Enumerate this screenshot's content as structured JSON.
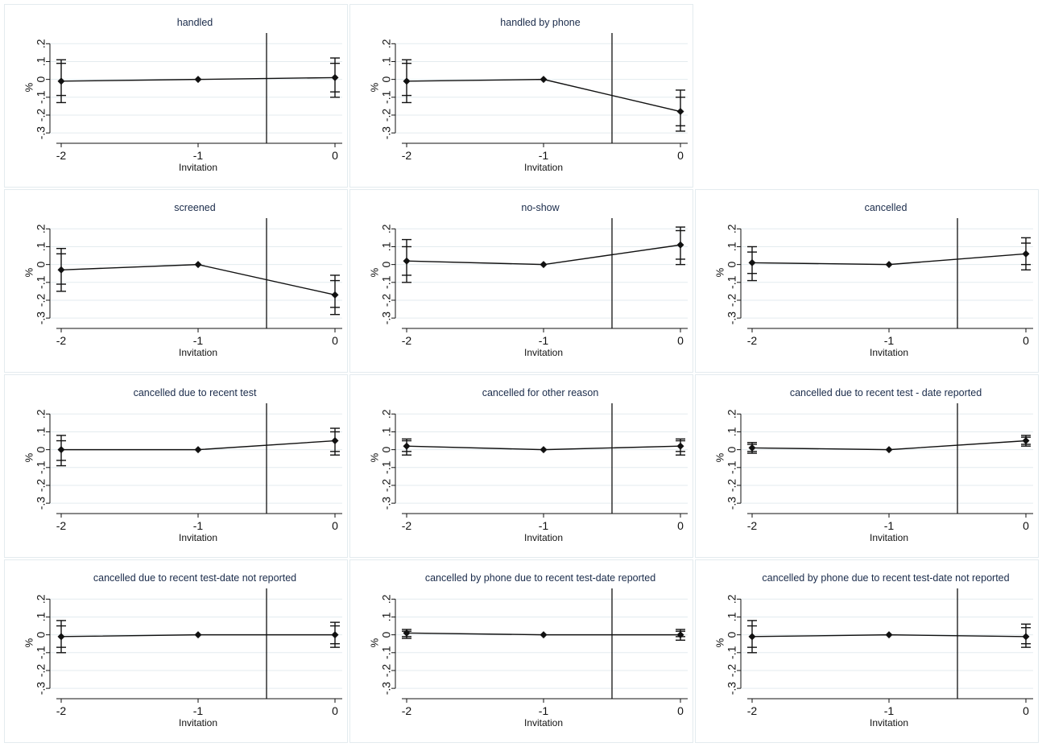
{
  "chart_data": [
    {
      "type": "line",
      "title": "handled",
      "xlabel": "Invitation",
      "ylabel": "%",
      "x": [
        -2,
        -1,
        0
      ],
      "x_tick_labels": [
        "-2",
        "-1",
        "0"
      ],
      "y_ticks": [
        -0.3,
        -0.2,
        -0.1,
        0,
        0.1,
        0.2
      ],
      "y_tick_labels": [
        "-.3",
        "-.2",
        "-.1",
        "0",
        ".1",
        ".2"
      ],
      "ylim": [
        -0.34,
        0.26
      ],
      "values": [
        -0.01,
        0.0,
        0.01
      ],
      "ci_inner": [
        [
          -0.09,
          0.09
        ],
        [
          0.0,
          0.0
        ],
        [
          -0.07,
          0.09
        ]
      ],
      "ci_outer": [
        [
          -0.13,
          0.11
        ],
        [
          0.0,
          0.0
        ],
        [
          -0.1,
          0.12
        ]
      ],
      "reference_line_x": -0.5
    },
    {
      "type": "line",
      "title": "handled by phone",
      "xlabel": "Invitation",
      "ylabel": "%",
      "x": [
        -2,
        -1,
        0
      ],
      "x_tick_labels": [
        "-2",
        "-1",
        "0"
      ],
      "y_ticks": [
        -0.3,
        -0.2,
        -0.1,
        0,
        0.1,
        0.2
      ],
      "y_tick_labels": [
        "-.3",
        "-.2",
        "-.1",
        "0",
        ".1",
        ".2"
      ],
      "ylim": [
        -0.34,
        0.26
      ],
      "values": [
        -0.01,
        0.0,
        -0.18
      ],
      "ci_inner": [
        [
          -0.09,
          0.09
        ],
        [
          0.0,
          0.0
        ],
        [
          -0.26,
          -0.1
        ]
      ],
      "ci_outer": [
        [
          -0.13,
          0.11
        ],
        [
          0.0,
          0.0
        ],
        [
          -0.29,
          -0.06
        ]
      ],
      "reference_line_x": -0.5
    },
    null,
    {
      "type": "line",
      "title": "screened",
      "xlabel": "Invitation",
      "ylabel": "%",
      "x": [
        -2,
        -1,
        0
      ],
      "x_tick_labels": [
        "-2",
        "-1",
        "0"
      ],
      "y_ticks": [
        -0.3,
        -0.2,
        -0.1,
        0,
        0.1,
        0.2
      ],
      "y_tick_labels": [
        "-.3",
        "-.2",
        "-.1",
        "0",
        ".1",
        ".2"
      ],
      "ylim": [
        -0.34,
        0.26
      ],
      "values": [
        -0.03,
        0.0,
        -0.17
      ],
      "ci_inner": [
        [
          -0.11,
          0.06
        ],
        [
          0.0,
          0.0
        ],
        [
          -0.24,
          -0.09
        ]
      ],
      "ci_outer": [
        [
          -0.15,
          0.09
        ],
        [
          0.0,
          0.0
        ],
        [
          -0.28,
          -0.06
        ]
      ],
      "reference_line_x": -0.5
    },
    {
      "type": "line",
      "title": "no-show",
      "xlabel": "Invitation",
      "ylabel": "%",
      "x": [
        -2,
        -1,
        0
      ],
      "x_tick_labels": [
        "-2",
        "-1",
        "0"
      ],
      "y_ticks": [
        -0.3,
        -0.2,
        -0.1,
        0,
        0.1,
        0.2
      ],
      "y_tick_labels": [
        "-.3",
        "-.2",
        "-.1",
        "0",
        ".1",
        ".2"
      ],
      "ylim": [
        -0.34,
        0.26
      ],
      "values": [
        0.02,
        0.0,
        0.11
      ],
      "ci_inner": [
        [
          -0.06,
          0.1
        ],
        [
          0.0,
          0.0
        ],
        [
          0.03,
          0.19
        ]
      ],
      "ci_outer": [
        [
          -0.1,
          0.14
        ],
        [
          0.0,
          0.0
        ],
        [
          0.0,
          0.21
        ]
      ],
      "reference_line_x": -0.5
    },
    {
      "type": "line",
      "title": "cancelled",
      "xlabel": "Invitation",
      "ylabel": "%",
      "x": [
        -2,
        -1,
        0
      ],
      "x_tick_labels": [
        "-2",
        "-1",
        "0"
      ],
      "y_ticks": [
        -0.3,
        -0.2,
        -0.1,
        0,
        0.1,
        0.2
      ],
      "y_tick_labels": [
        "-.3",
        "-.2",
        "-.1",
        "0",
        ".1",
        ".2"
      ],
      "ylim": [
        -0.34,
        0.26
      ],
      "values": [
        0.01,
        0.0,
        0.06
      ],
      "ci_inner": [
        [
          -0.05,
          0.07
        ],
        [
          0.0,
          0.0
        ],
        [
          0.0,
          0.12
        ]
      ],
      "ci_outer": [
        [
          -0.09,
          0.1
        ],
        [
          0.0,
          0.0
        ],
        [
          -0.03,
          0.15
        ]
      ],
      "reference_line_x": -0.5
    },
    {
      "type": "line",
      "title": "cancelled due to recent test",
      "xlabel": "Invitation",
      "ylabel": "%",
      "x": [
        -2,
        -1,
        0
      ],
      "x_tick_labels": [
        "-2",
        "-1",
        "0"
      ],
      "y_ticks": [
        -0.3,
        -0.2,
        -0.1,
        0,
        0.1,
        0.2
      ],
      "y_tick_labels": [
        "-.3",
        "-.2",
        "-.1",
        "0",
        ".1",
        ".2"
      ],
      "ylim": [
        -0.34,
        0.26
      ],
      "values": [
        0.0,
        0.0,
        0.05
      ],
      "ci_inner": [
        [
          -0.06,
          0.05
        ],
        [
          0.0,
          0.0
        ],
        [
          -0.01,
          0.1
        ]
      ],
      "ci_outer": [
        [
          -0.09,
          0.08
        ],
        [
          0.0,
          0.0
        ],
        [
          -0.03,
          0.12
        ]
      ],
      "reference_line_x": -0.5
    },
    {
      "type": "line",
      "title": "cancelled for other reason",
      "xlabel": "Invitation",
      "ylabel": "%",
      "x": [
        -2,
        -1,
        0
      ],
      "x_tick_labels": [
        "-2",
        "-1",
        "0"
      ],
      "y_ticks": [
        -0.3,
        -0.2,
        -0.1,
        0,
        0.1,
        0.2
      ],
      "y_tick_labels": [
        "-.3",
        "-.2",
        "-.1",
        "0",
        ".1",
        ".2"
      ],
      "ylim": [
        -0.34,
        0.26
      ],
      "values": [
        0.02,
        0.0,
        0.02
      ],
      "ci_inner": [
        [
          -0.01,
          0.05
        ],
        [
          0.0,
          0.0
        ],
        [
          -0.01,
          0.05
        ]
      ],
      "ci_outer": [
        [
          -0.03,
          0.06
        ],
        [
          0.0,
          0.0
        ],
        [
          -0.03,
          0.06
        ]
      ],
      "reference_line_x": -0.5
    },
    {
      "type": "line",
      "title": "cancelled due to recent test - date reported",
      "xlabel": "Invitation",
      "ylabel": "%",
      "x": [
        -2,
        -1,
        0
      ],
      "x_tick_labels": [
        "-2",
        "-1",
        "0"
      ],
      "y_ticks": [
        -0.3,
        -0.2,
        -0.1,
        0,
        0.1,
        0.2
      ],
      "y_tick_labels": [
        "-.3",
        "-.2",
        "-.1",
        "0",
        ".1",
        ".2"
      ],
      "ylim": [
        -0.34,
        0.26
      ],
      "values": [
        0.01,
        0.0,
        0.05
      ],
      "ci_inner": [
        [
          -0.01,
          0.03
        ],
        [
          0.0,
          0.0
        ],
        [
          0.03,
          0.07
        ]
      ],
      "ci_outer": [
        [
          -0.02,
          0.04
        ],
        [
          0.0,
          0.0
        ],
        [
          0.02,
          0.08
        ]
      ],
      "reference_line_x": -0.5
    },
    {
      "type": "line",
      "title": "cancelled due to recent test-date not reported",
      "xlabel": "Invitation",
      "ylabel": "%",
      "x": [
        -2,
        -1,
        0
      ],
      "x_tick_labels": [
        "-2",
        "-1",
        "0"
      ],
      "y_ticks": [
        -0.3,
        -0.2,
        -0.1,
        0,
        0.1,
        0.2
      ],
      "y_tick_labels": [
        "-.3",
        "-.2",
        "-.1",
        "0",
        ".1",
        ".2"
      ],
      "ylim": [
        -0.34,
        0.26
      ],
      "values": [
        -0.01,
        0.0,
        0.0
      ],
      "ci_inner": [
        [
          -0.07,
          0.05
        ],
        [
          0.0,
          0.0
        ],
        [
          -0.05,
          0.05
        ]
      ],
      "ci_outer": [
        [
          -0.1,
          0.08
        ],
        [
          0.0,
          0.0
        ],
        [
          -0.07,
          0.07
        ]
      ],
      "reference_line_x": -0.5
    },
    {
      "type": "line",
      "title": "cancelled by phone due to recent test-date reported",
      "xlabel": "Invitation",
      "ylabel": "%",
      "x": [
        -2,
        -1,
        0
      ],
      "x_tick_labels": [
        "-2",
        "-1",
        "0"
      ],
      "y_ticks": [
        -0.3,
        -0.2,
        -0.1,
        0,
        0.1,
        0.2
      ],
      "y_tick_labels": [
        "-.3",
        "-.2",
        "-.1",
        "0",
        ".1",
        ".2"
      ],
      "ylim": [
        -0.34,
        0.26
      ],
      "values": [
        0.01,
        0.0,
        0.0
      ],
      "ci_inner": [
        [
          -0.01,
          0.02
        ],
        [
          0.0,
          0.0
        ],
        [
          -0.01,
          0.02
        ]
      ],
      "ci_outer": [
        [
          -0.02,
          0.03
        ],
        [
          0.0,
          0.0
        ],
        [
          -0.03,
          0.03
        ]
      ],
      "reference_line_x": -0.5
    },
    {
      "type": "line",
      "title": "cancelled by phone due to recent test-date not reported",
      "xlabel": "Invitation",
      "ylabel": "%",
      "x": [
        -2,
        -1,
        0
      ],
      "x_tick_labels": [
        "-2",
        "-1",
        "0"
      ],
      "y_ticks": [
        -0.3,
        -0.2,
        -0.1,
        0,
        0.1,
        0.2
      ],
      "y_tick_labels": [
        "-.3",
        "-.2",
        "-.1",
        "0",
        ".1",
        ".2"
      ],
      "ylim": [
        -0.34,
        0.26
      ],
      "values": [
        -0.01,
        0.0,
        -0.01
      ],
      "ci_inner": [
        [
          -0.07,
          0.05
        ],
        [
          0.0,
          0.0
        ],
        [
          -0.05,
          0.04
        ]
      ],
      "ci_outer": [
        [
          -0.1,
          0.08
        ],
        [
          0.0,
          0.0
        ],
        [
          -0.07,
          0.06
        ]
      ],
      "reference_line_x": -0.5
    }
  ]
}
